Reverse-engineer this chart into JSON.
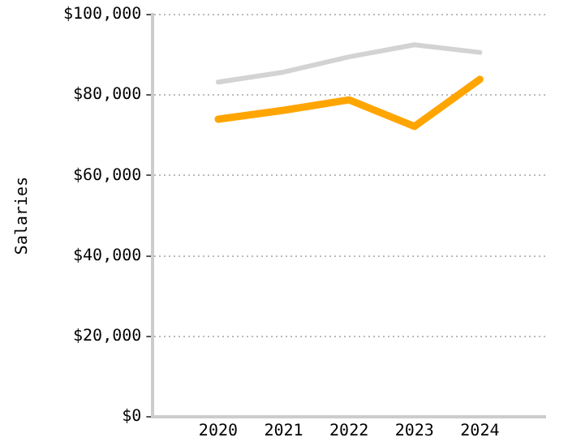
{
  "chart_data": {
    "type": "line",
    "ylabel": "Salaries",
    "x": [
      2020,
      2021,
      2022,
      2023,
      2024
    ],
    "xlim": [
      2019,
      2025
    ],
    "xticks": [
      2020,
      2021,
      2022,
      2023,
      2024
    ],
    "ylim": [
      0,
      100000
    ],
    "yticks": [
      {
        "value": 0,
        "label": "$0"
      },
      {
        "value": 20000,
        "label": "$20,000"
      },
      {
        "value": 40000,
        "label": "$40,000"
      },
      {
        "value": 60000,
        "label": "$60,000"
      },
      {
        "value": 80000,
        "label": "$80,000"
      },
      {
        "value": 100000,
        "label": "$100,000"
      }
    ],
    "grid": "y",
    "legend": false,
    "marker": "none",
    "line_style": "solid",
    "series": [
      {
        "color": "#d3d3d3",
        "values": [
          83200,
          85700,
          89500,
          92500,
          90600
        ]
      },
      {
        "color": "#ffa500",
        "values": [
          74000,
          76200,
          78800,
          72200,
          83900
        ]
      }
    ]
  }
}
